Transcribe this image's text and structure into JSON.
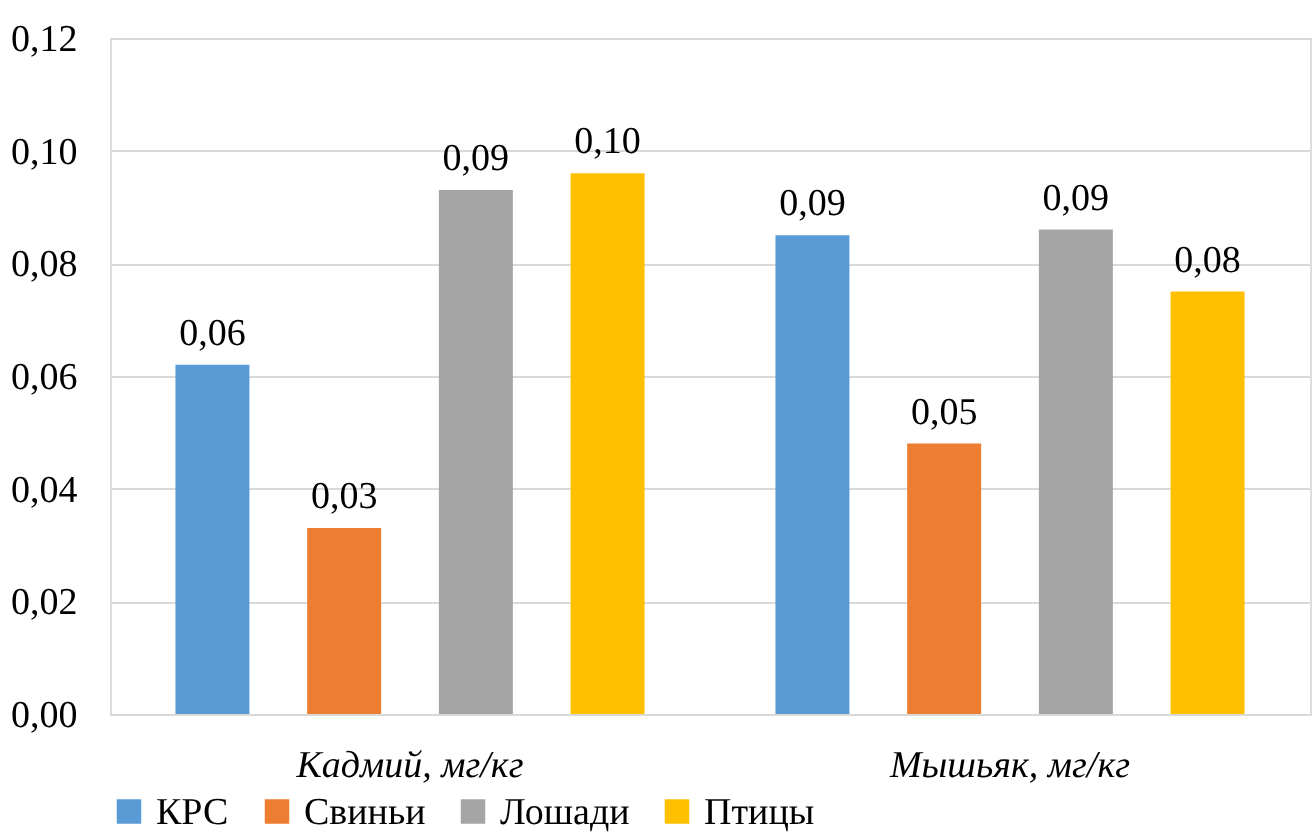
{
  "chart_data": {
    "type": "bar",
    "categories": [
      "Кадмий, мг/кг",
      "Мышьяк, мг/кг"
    ],
    "series": [
      {
        "name": "КРС",
        "color": "#5b9bd5",
        "values": [
          0.062,
          0.085
        ],
        "value_labels": [
          "0,06",
          "0,09"
        ]
      },
      {
        "name": "Свиньи",
        "color": "#ed7d31",
        "values": [
          0.033,
          0.048
        ],
        "value_labels": [
          "0,03",
          "0,05"
        ]
      },
      {
        "name": "Лошади",
        "color": "#a5a5a5",
        "values": [
          0.093,
          0.086
        ],
        "value_labels": [
          "0,09",
          "0,09"
        ]
      },
      {
        "name": "Птицы",
        "color": "#ffc000",
        "values": [
          0.096,
          0.075
        ],
        "value_labels": [
          "0,10",
          "0,08"
        ]
      }
    ],
    "ylim": [
      0,
      0.12
    ],
    "yticks": [
      {
        "value": 0,
        "label": "0,00"
      },
      {
        "value": 0.02,
        "label": "0,02"
      },
      {
        "value": 0.04,
        "label": "0,04"
      },
      {
        "value": 0.06,
        "label": "0,06"
      },
      {
        "value": 0.08,
        "label": "0,08"
      },
      {
        "value": 0.1,
        "label": "0,10"
      },
      {
        "value": 0.12,
        "label": "0,12"
      }
    ],
    "grid": "y",
    "legend": "bottom"
  }
}
